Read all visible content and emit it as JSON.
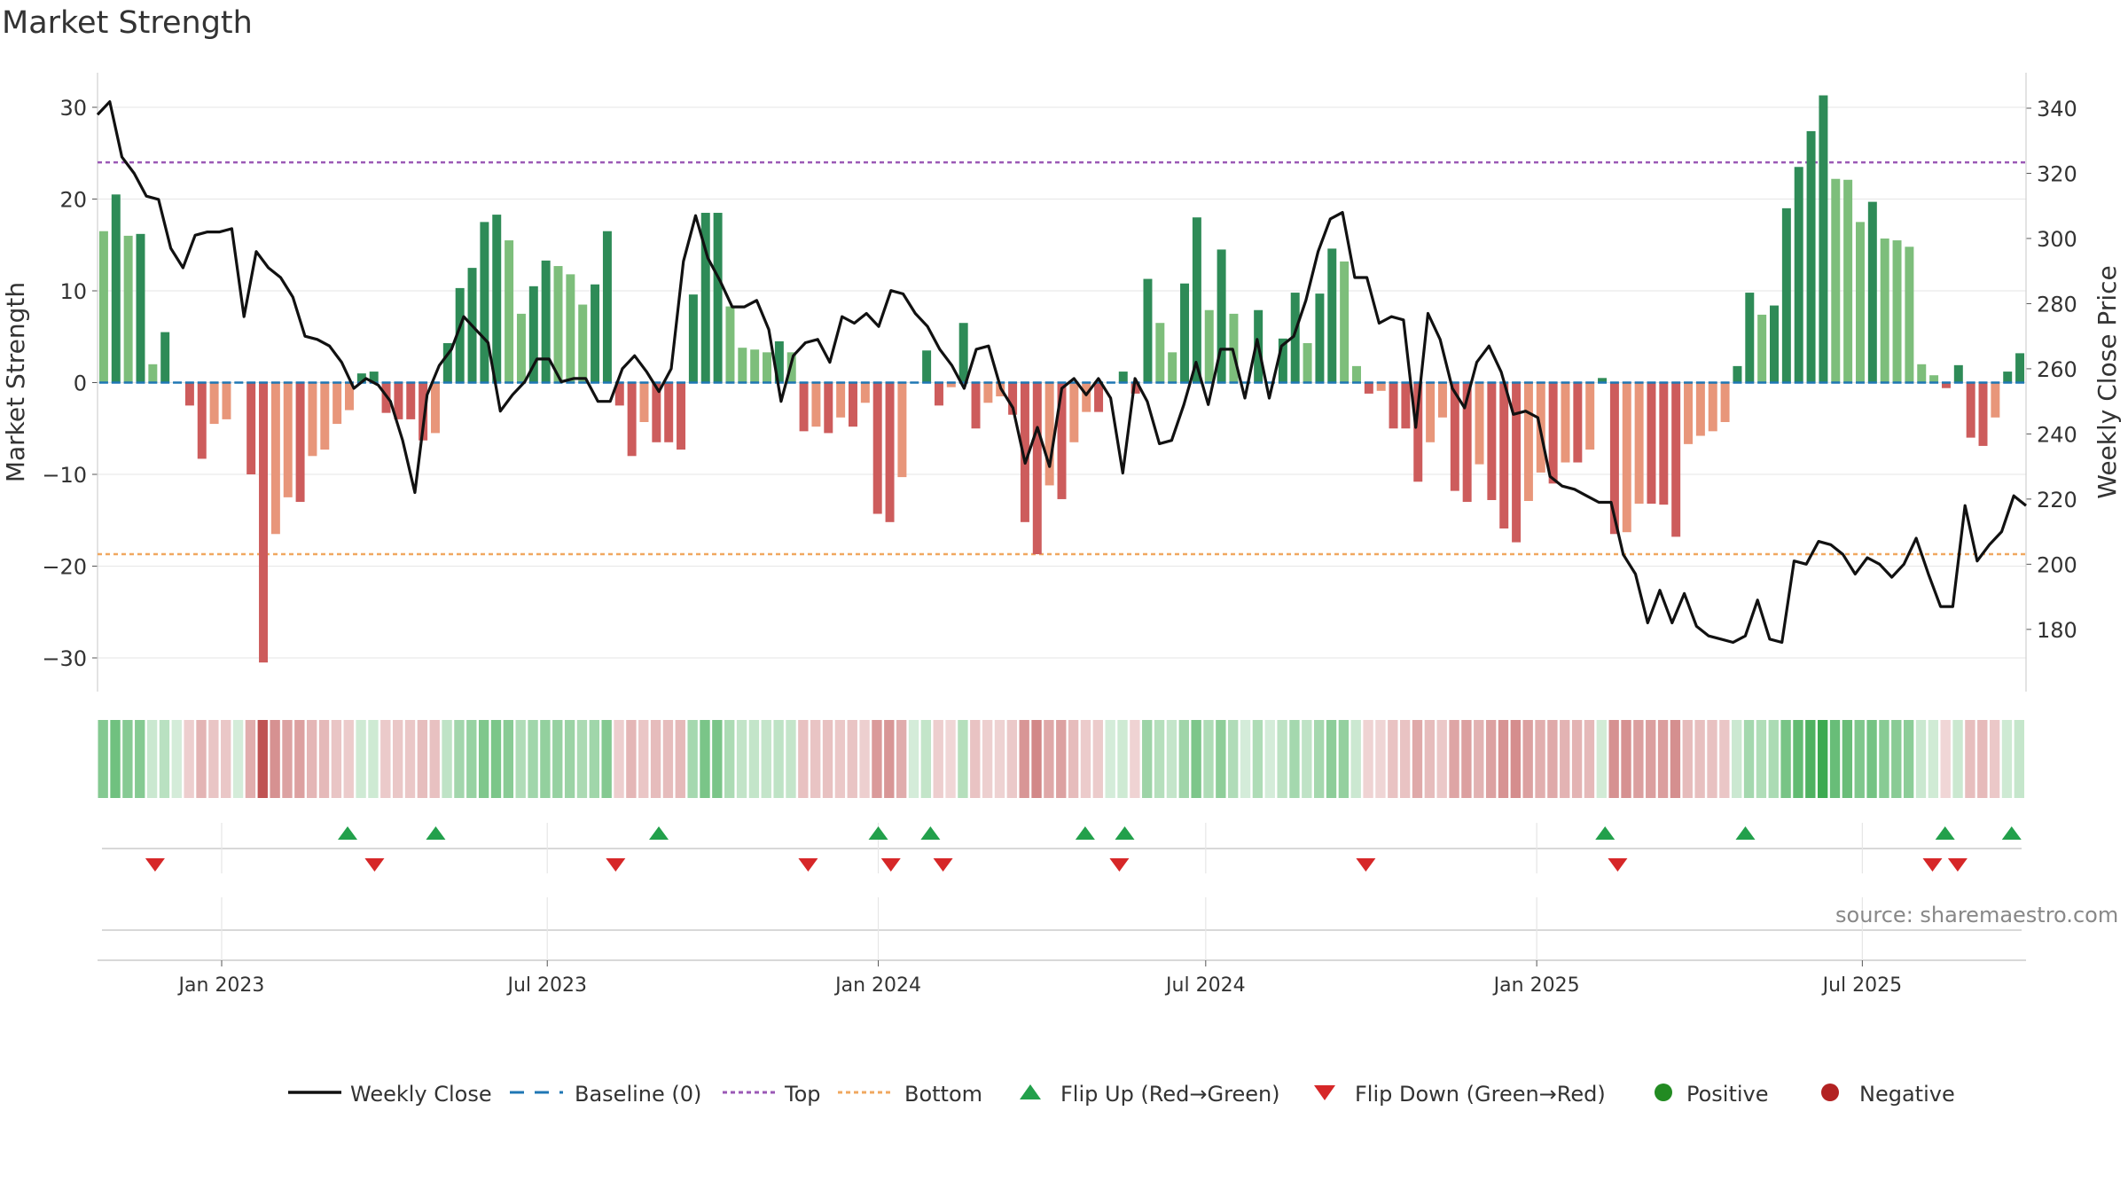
{
  "title": "Market Strength",
  "source": "source: sharemaestro.com",
  "colors": {
    "strong_green": "#2e8b57",
    "light_green": "#7dbe7b",
    "strong_red": "#cd5c5c",
    "light_red": "#e8967a",
    "line": "#111111",
    "top_line": "#9b59b6",
    "bottom_line": "#f0a860",
    "baseline": "#1f77b4",
    "flip_up": "#22a04b",
    "flip_down": "#d62728",
    "positive": "#228b22",
    "negative": "#b22222"
  },
  "chart_data": {
    "type": "bar+line",
    "title": "Market Strength",
    "ylabel_left": "Market Strength",
    "ylabel_right": "Weekly Close Price",
    "ylim_left": [
      -34,
      33
    ],
    "ylim_right": [
      164,
      349
    ],
    "yticks_left": [
      30,
      20,
      10,
      0,
      -10,
      -20,
      -30
    ],
    "ytick_labels_left": [
      "30",
      "20",
      "10",
      "0",
      "−10",
      "−20",
      "−30"
    ],
    "yticks_right": [
      340,
      320,
      300,
      280,
      260,
      240,
      220,
      200,
      180
    ],
    "x_start": "2022-10-24",
    "x_end": "2025-09-30",
    "x_ticks": [
      "2023-01-01",
      "2023-07-01",
      "2024-01-01",
      "2024-07-01",
      "2025-01-01",
      "2025-07-01"
    ],
    "x_tick_labels": [
      "Jan 2023",
      "Jul 2023",
      "Jan 2024",
      "Jul 2024",
      "Jan 2025",
      "Jul 2025"
    ],
    "top_threshold": 24,
    "bottom_threshold": -18.7,
    "baseline": 0,
    "strength": [
      16.5,
      20.5,
      16,
      16.2,
      2,
      5.5,
      0,
      -2.5,
      -8.3,
      -4.5,
      -4,
      0,
      -10,
      -30.5,
      -16.5,
      -12.5,
      -13,
      -8,
      -7.3,
      -4.5,
      -3,
      1,
      1.2,
      -3.3,
      -4,
      -4,
      -6.3,
      -5.5,
      4.3,
      10.3,
      12.5,
      17.5,
      18.3,
      15.5,
      7.5,
      10.5,
      13.3,
      12.7,
      11.8,
      8.5,
      10.7,
      16.5,
      -2.5,
      -8,
      -4.3,
      -6.5,
      -6.5,
      -7.3,
      9.6,
      18.5,
      18.5,
      8.3,
      3.8,
      3.6,
      3.3,
      4.5,
      3.3,
      -5.3,
      -4.8,
      -5.5,
      -3.8,
      -4.8,
      -2.2,
      -14.3,
      -15.2,
      -10.3,
      0,
      3.5,
      -2.5,
      -0.5,
      6.5,
      -5,
      -2.2,
      -1.5,
      -3.5,
      -15.2,
      -18.7,
      -11.2,
      -12.7,
      -6.5,
      -3.2,
      -3.2,
      0,
      1.2,
      -1.2,
      11.3,
      6.5,
      3.3,
      10.8,
      18,
      7.9,
      14.5,
      7.5,
      0,
      7.9,
      0,
      4.8,
      9.8,
      4.3,
      9.7,
      14.6,
      13.2,
      1.8,
      -1.2,
      -0.9,
      -5,
      -5,
      -10.8,
      -6.5,
      -3.8,
      -11.8,
      -13,
      -8.9,
      -12.8,
      -15.9,
      -17.4,
      -12.9,
      -9.8,
      -11,
      -8.7,
      -8.7,
      -7.3,
      0.5,
      -16.5,
      -16.3,
      -13.2,
      -13.2,
      -13.3,
      -16.8,
      -6.7,
      -5.8,
      -5.3,
      -4.3,
      1.8,
      9.8,
      7.4,
      8.4,
      19,
      23.5,
      27.4,
      31.3,
      22.2,
      22.1,
      17.5,
      19.7,
      15.7,
      15.5,
      14.8,
      2,
      0.8,
      -0.6,
      1.9,
      -6,
      -6.9,
      -3.8,
      1.2,
      3.2
    ],
    "weekly_close": [
      338,
      342,
      325,
      320,
      313,
      312,
      297,
      291,
      301,
      302,
      302,
      303,
      276,
      296,
      291,
      288,
      282,
      270,
      269,
      267,
      262,
      254,
      257,
      255,
      250,
      238,
      222,
      252,
      261,
      266,
      276,
      272,
      268,
      247,
      252,
      256,
      263,
      263,
      256,
      257,
      257,
      250,
      250,
      260,
      264,
      259,
      253,
      260,
      293,
      307,
      294,
      287,
      279,
      279,
      281,
      272,
      250,
      264,
      268,
      269,
      262,
      276,
      274,
      277,
      273,
      284,
      283,
      277,
      273,
      266,
      261,
      254,
      266,
      267,
      254,
      248,
      231,
      242,
      230,
      254,
      257,
      252,
      257,
      251,
      228,
      257,
      250,
      237,
      238,
      249,
      262,
      249,
      266,
      266,
      251,
      269,
      251,
      267,
      270,
      281,
      296,
      306,
      308,
      288,
      288,
      274,
      276,
      275,
      242,
      277,
      269,
      254,
      248,
      262,
      267,
      259,
      246,
      247,
      245,
      227,
      224,
      223,
      221,
      219,
      219,
      203,
      197,
      182,
      192,
      182,
      191,
      181,
      178,
      177,
      176,
      178,
      189,
      177,
      176,
      201,
      200,
      207,
      206,
      203,
      197,
      202,
      200,
      196,
      200,
      208,
      197,
      187,
      187,
      218,
      201,
      206,
      210,
      221,
      218
    ],
    "flip_up_x": [
      "2023-03-12",
      "2023-04-30",
      "2023-09-01",
      "2024-01-01",
      "2024-01-30",
      "2024-04-25",
      "2024-05-17",
      "2025-02-08",
      "2025-04-27",
      "2025-08-16",
      "2025-09-22"
    ],
    "flip_down_x": [
      "2022-11-25",
      "2023-03-27",
      "2023-08-08",
      "2023-11-23",
      "2024-01-08",
      "2024-02-06",
      "2024-05-14",
      "2024-09-28",
      "2025-02-15",
      "2025-08-09",
      "2025-08-23"
    ],
    "legend": [
      "Weekly Close",
      "Baseline (0)",
      "Top",
      "Bottom",
      "Flip Up (Red→Green)",
      "Flip Down (Green→Red)",
      "Positive",
      "Negative"
    ]
  }
}
